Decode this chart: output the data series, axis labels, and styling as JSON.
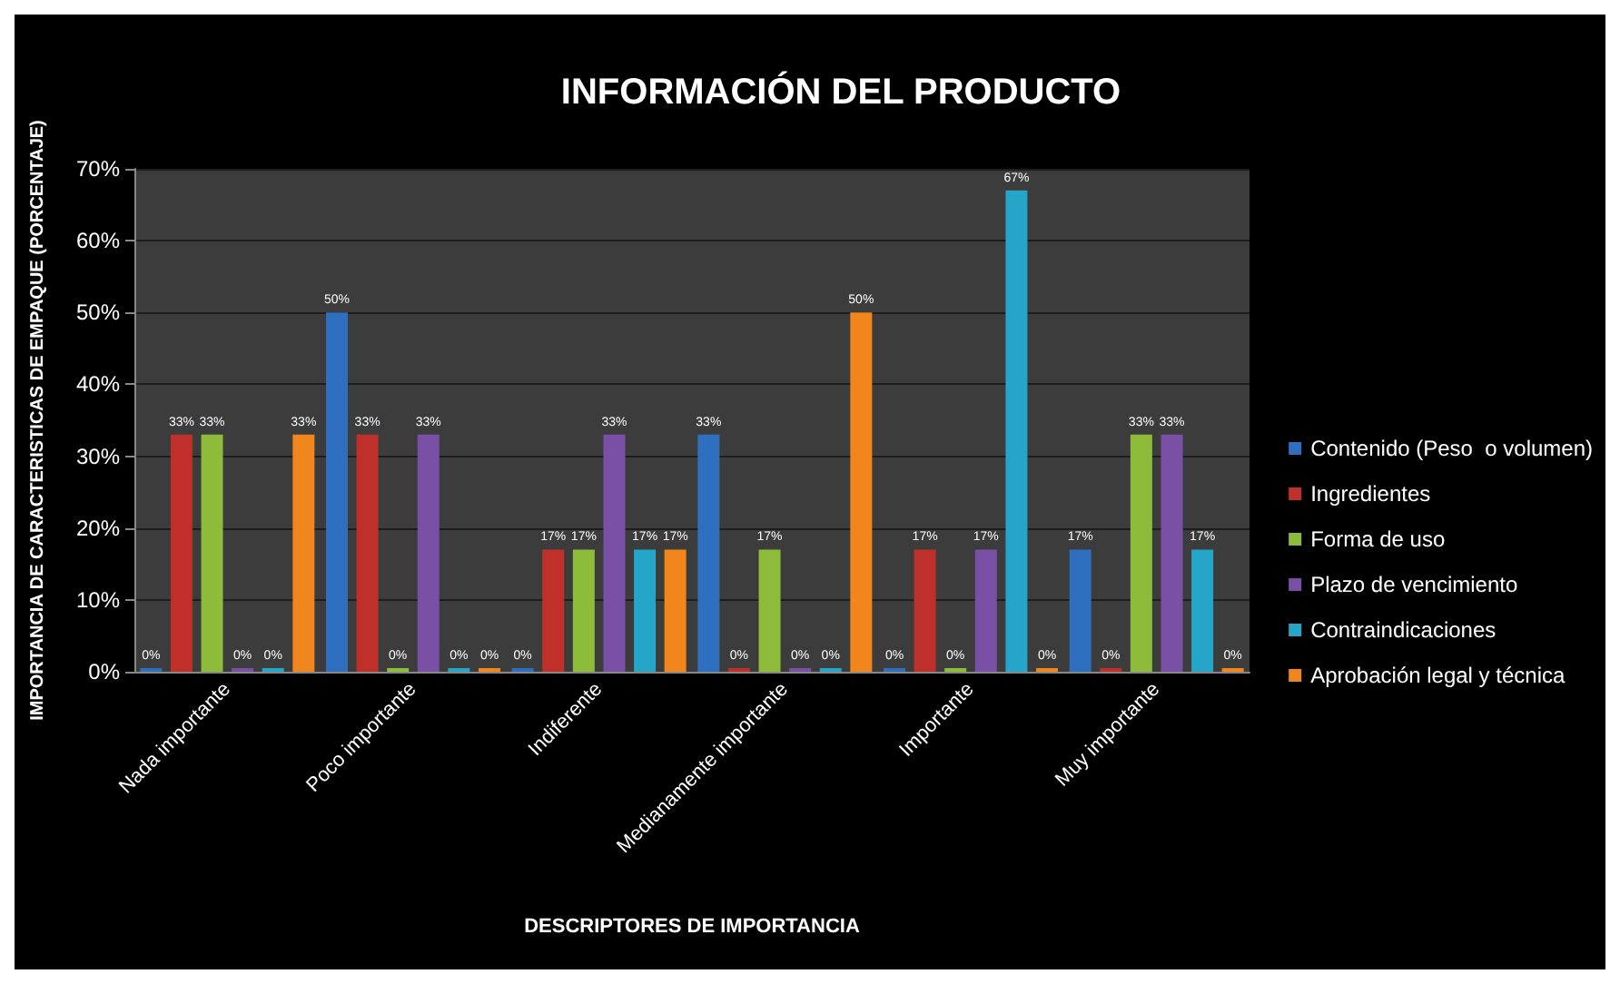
{
  "chart_data": {
    "type": "bar",
    "title": "INFORMACIÓN DEL PRODUCTO",
    "xlabel": "DESCRIPTORES DE IMPORTANCIA",
    "ylabel": "IMPORTANCIA DE CARACTERISTICAS DE EMPAQUE (PORCENTAJE)",
    "categories": [
      "Nada importante",
      "Poco importante",
      "Indiferente",
      "Medianamente importante",
      "Importante",
      "Muy importante"
    ],
    "series": [
      {
        "name": "Contenido (Peso  o volumen)",
        "color": "#2f6fbf",
        "values": [
          0,
          50,
          0,
          33,
          0,
          17
        ],
        "value_labels": [
          "0%",
          "50%",
          "0%",
          "33%",
          "0%",
          "17%"
        ]
      },
      {
        "name": "Ingredientes",
        "color": "#c0302b",
        "values": [
          33,
          33,
          17,
          0,
          17,
          0
        ],
        "value_labels": [
          "33%",
          "33%",
          "17%",
          "0%",
          "17%",
          "0%"
        ]
      },
      {
        "name": "Forma de uso",
        "color": "#8dbb3a",
        "values": [
          33,
          0,
          17,
          17,
          0,
          33
        ],
        "value_labels": [
          "33%",
          "0%",
          "17%",
          "17%",
          "0%",
          "33%"
        ]
      },
      {
        "name": "Plazo de vencimiento",
        "color": "#7a4fa6",
        "values": [
          0,
          33,
          33,
          0,
          17,
          33
        ],
        "value_labels": [
          "0%",
          "33%",
          "33%",
          "0%",
          "17%",
          "33%"
        ]
      },
      {
        "name": "Contraindicaciones",
        "color": "#25a5c8",
        "values": [
          0,
          0,
          17,
          0,
          67,
          17
        ],
        "value_labels": [
          "0%",
          "0%",
          "17%",
          "0%",
          "67%",
          "17%"
        ]
      },
      {
        "name": "Aprobación legal y técnica",
        "color": "#f0861c",
        "values": [
          33,
          0,
          17,
          50,
          0,
          0
        ],
        "value_labels": [
          "33%",
          "0%",
          "17%",
          "50%",
          "0%",
          "0%"
        ]
      }
    ],
    "ylim": [
      0,
      70
    ],
    "yticks": [
      {
        "value": 0,
        "label": "0%"
      },
      {
        "value": 10,
        "label": "10%"
      },
      {
        "value": 20,
        "label": "20%"
      },
      {
        "value": 30,
        "label": "30%"
      },
      {
        "value": 40,
        "label": "40%"
      },
      {
        "value": 50,
        "label": "50%"
      },
      {
        "value": 60,
        "label": "60%"
      },
      {
        "value": 70,
        "label": "70%"
      }
    ],
    "grid": "y",
    "legend": "right"
  }
}
